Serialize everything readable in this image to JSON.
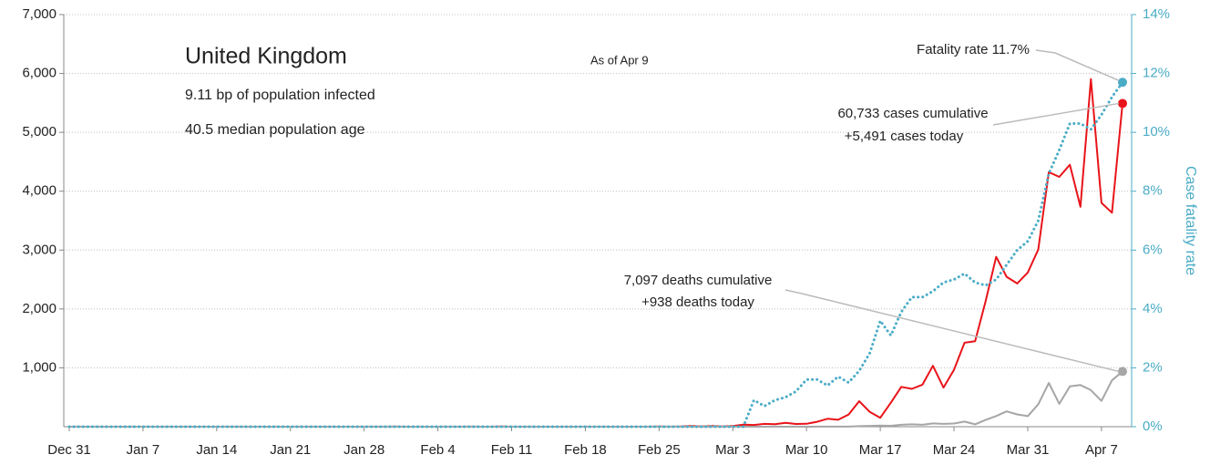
{
  "chart_data": {
    "type": "line",
    "title": "United Kingdom",
    "annotations": [
      "9.11 bp of population infected",
      "40.5 median population age",
      "As of Apr 9",
      "Fatality rate 11.7%",
      "60,733 cases cumulative",
      "+5,491 cases today",
      "7,097 deaths cumulative",
      "+938 deaths today"
    ],
    "y2label": "Case fatality rate",
    "categories": [
      "Dec 31",
      null,
      null,
      null,
      null,
      null,
      null,
      "Jan 7",
      null,
      null,
      null,
      null,
      null,
      null,
      "Jan 14",
      null,
      null,
      null,
      null,
      null,
      null,
      "Jan 21",
      null,
      null,
      null,
      null,
      null,
      null,
      "Jan 28",
      null,
      null,
      null,
      null,
      null,
      null,
      "Feb 4",
      null,
      null,
      null,
      null,
      null,
      null,
      "Feb 11",
      null,
      null,
      null,
      null,
      null,
      null,
      "Feb 18",
      null,
      null,
      null,
      null,
      null,
      null,
      "Feb 25",
      null,
      null,
      null,
      null,
      null,
      null,
      "Mar 3",
      null,
      null,
      null,
      null,
      null,
      null,
      "Mar 10",
      null,
      null,
      null,
      null,
      null,
      null,
      "Mar 17",
      null,
      null,
      null,
      null,
      null,
      null,
      "Mar 24",
      null,
      null,
      null,
      null,
      null,
      null,
      "Mar 31",
      null,
      null,
      null,
      null,
      null,
      null,
      "Apr 7",
      null,
      null
    ],
    "series": [
      {
        "color": "#e8141a",
        "style": "solid",
        "values": [
          0,
          0,
          0,
          0,
          0,
          0,
          0,
          0,
          0,
          0,
          0,
          0,
          0,
          0,
          0,
          0,
          0,
          0,
          0,
          0,
          0,
          0,
          0,
          0,
          0,
          0,
          0,
          0,
          0,
          0,
          0,
          2,
          0,
          0,
          0,
          0,
          0,
          0,
          1,
          0,
          0,
          4,
          0,
          0,
          0,
          0,
          0,
          0,
          0,
          0,
          0,
          0,
          0,
          0,
          0,
          0,
          4,
          0,
          3,
          12,
          5,
          13,
          4,
          11,
          34,
          30,
          48,
          43,
          67,
          46,
          50,
          83,
          134,
          117,
          208,
          433,
          251,
          152,
          407,
          676,
          643,
          714,
          1035,
          665,
          967,
          1427,
          1452,
          2129,
          2885,
          2546,
          2433,
          2619,
          3009,
          4324,
          4244,
          4450,
          3735,
          5903,
          3802,
          3634,
          5491
        ]
      },
      {
        "color": "#a6a6a6",
        "style": "solid",
        "values": [
          0,
          0,
          0,
          0,
          0,
          0,
          0,
          0,
          0,
          0,
          0,
          0,
          0,
          0,
          0,
          0,
          0,
          0,
          0,
          0,
          0,
          0,
          0,
          0,
          0,
          0,
          0,
          0,
          0,
          0,
          0,
          0,
          0,
          0,
          0,
          0,
          0,
          0,
          0,
          0,
          0,
          0,
          0,
          0,
          0,
          0,
          0,
          0,
          0,
          0,
          0,
          0,
          0,
          0,
          0,
          0,
          0,
          0,
          0,
          0,
          0,
          0,
          0,
          0,
          0,
          0,
          0,
          1,
          0,
          1,
          0,
          2,
          1,
          2,
          1,
          10,
          14,
          20,
          16,
          33,
          40,
          33,
          56,
          48,
          54,
          87,
          41,
          115,
          181,
          260,
          209,
          180,
          381,
          743,
          389,
          684,
          708,
          621,
          439,
          786,
          938
        ]
      },
      {
        "color": "#4bacc6",
        "style": "dotted",
        "axis": "y2",
        "values": [
          0,
          0,
          0,
          0,
          0,
          0,
          0,
          0,
          0,
          0,
          0,
          0,
          0,
          0,
          0,
          0,
          0,
          0,
          0,
          0,
          0,
          0,
          0,
          0,
          0,
          0,
          0,
          0,
          0,
          0,
          0,
          0,
          0,
          0,
          0,
          0,
          0,
          0,
          0,
          0,
          0,
          0,
          0,
          0,
          0,
          0,
          0,
          0,
          0,
          0,
          0,
          0,
          0,
          0,
          0,
          0,
          0,
          0,
          0,
          0,
          0,
          0,
          0,
          0,
          0,
          0.9,
          0.7,
          0.9,
          1.0,
          1.2,
          1.6,
          1.6,
          1.4,
          1.7,
          1.5,
          1.9,
          2.5,
          3.6,
          3.1,
          3.9,
          4.4,
          4.4,
          4.6,
          4.9,
          5.0,
          5.2,
          4.9,
          4.8,
          5.0,
          5.5,
          6.0,
          6.3,
          7.0,
          8.6,
          9.4,
          10.3,
          10.3,
          10.1,
          10.6,
          11.2,
          11.7
        ]
      }
    ],
    "ylim": [
      0,
      7000
    ],
    "yticks": [
      {
        "value": 1000,
        "label": "1,000"
      },
      {
        "value": 2000,
        "label": "2,000"
      },
      {
        "value": 3000,
        "label": "3,000"
      },
      {
        "value": 4000,
        "label": "4,000"
      },
      {
        "value": 5000,
        "label": "5,000"
      },
      {
        "value": 6000,
        "label": "6,000"
      },
      {
        "value": 7000,
        "label": "7,000"
      }
    ],
    "y2lim": [
      0,
      14
    ],
    "y2ticks": [
      {
        "value": 0,
        "label": "0%"
      },
      {
        "value": 2,
        "label": "2%"
      },
      {
        "value": 4,
        "label": "4%"
      },
      {
        "value": 6,
        "label": "6%"
      },
      {
        "value": 8,
        "label": "8%"
      },
      {
        "value": 10,
        "label": "10%"
      },
      {
        "value": 12,
        "label": "12%"
      },
      {
        "value": 14,
        "label": "14%"
      }
    ],
    "grid": true
  }
}
